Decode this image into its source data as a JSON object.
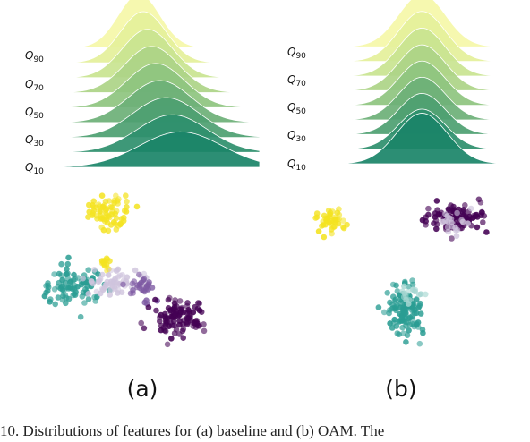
{
  "caption": "10.  Distributions of features for (a) baseline and (b) OAM. The",
  "chart_data": [
    {
      "type": "ridgeline",
      "panel": "(a)",
      "quantile_labels": [
        {
          "base": "Q",
          "sub": "90"
        },
        {
          "base": "Q",
          "sub": "70"
        },
        {
          "base": "Q",
          "sub": "50"
        },
        {
          "base": "Q",
          "sub": "30"
        },
        {
          "base": "Q",
          "sub": "10"
        }
      ],
      "colors": [
        "#f5f7a8",
        "#e4f09a",
        "#c9e490",
        "#acd487",
        "#8ec47f",
        "#6db077",
        "#4d9f71",
        "#2e8f6c",
        "#1a8468"
      ],
      "ridges": [
        {
          "peak": 0.42,
          "width": 0.1,
          "height": 1.0
        },
        {
          "peak": 0.44,
          "width": 0.11,
          "height": 0.95
        },
        {
          "peak": 0.46,
          "width": 0.12,
          "height": 0.9
        },
        {
          "peak": 0.48,
          "width": 0.13,
          "height": 0.86
        },
        {
          "peak": 0.5,
          "width": 0.14,
          "height": 0.82
        },
        {
          "peak": 0.52,
          "width": 0.15,
          "height": 0.78
        },
        {
          "peak": 0.55,
          "width": 0.16,
          "height": 0.74
        },
        {
          "peak": 0.58,
          "width": 0.17,
          "height": 0.7
        },
        {
          "peak": 0.62,
          "width": 0.2,
          "height": 0.66
        }
      ]
    },
    {
      "type": "ridgeline",
      "panel": "(b)",
      "quantile_labels": [
        {
          "base": "Q",
          "sub": "90"
        },
        {
          "base": "Q",
          "sub": "70"
        },
        {
          "base": "Q",
          "sub": "50"
        },
        {
          "base": "Q",
          "sub": "30"
        },
        {
          "base": "Q",
          "sub": "10"
        }
      ],
      "colors": [
        "#f5f7a8",
        "#e4f09a",
        "#c9e490",
        "#acd487",
        "#8ec47f",
        "#6db077",
        "#4d9f71",
        "#2e8f6c",
        "#1a8468"
      ],
      "ridges": [
        {
          "peak": 0.52,
          "width": 0.12,
          "height": 1.0
        },
        {
          "peak": 0.52,
          "width": 0.12,
          "height": 0.95
        },
        {
          "peak": 0.52,
          "width": 0.12,
          "height": 0.91
        },
        {
          "peak": 0.52,
          "width": 0.12,
          "height": 0.87
        },
        {
          "peak": 0.52,
          "width": 0.12,
          "height": 0.84
        },
        {
          "peak": 0.52,
          "width": 0.12,
          "height": 0.81
        },
        {
          "peak": 0.52,
          "width": 0.12,
          "height": 0.78
        },
        {
          "peak": 0.52,
          "width": 0.12,
          "height": 0.76
        },
        {
          "peak": 0.52,
          "width": 0.13,
          "height": 0.96
        }
      ]
    },
    {
      "type": "scatter",
      "panel": "(a)",
      "clusters": [
        {
          "color": "#f4e321",
          "center": [
            0.38,
            0.13
          ],
          "spread": [
            0.08,
            0.1
          ],
          "n": 70
        },
        {
          "color": "#f4e321",
          "center": [
            0.36,
            0.42
          ],
          "spread": [
            0.03,
            0.03
          ],
          "n": 12
        },
        {
          "color": "#2a9d93",
          "center": [
            0.2,
            0.58
          ],
          "spread": [
            0.13,
            0.12
          ],
          "n": 90
        },
        {
          "color": "#cfc4dd",
          "center": [
            0.4,
            0.55
          ],
          "spread": [
            0.1,
            0.06
          ],
          "n": 60
        },
        {
          "color": "#7e5aa3",
          "center": [
            0.55,
            0.58
          ],
          "spread": [
            0.06,
            0.06
          ],
          "n": 30
        },
        {
          "color": "#440154",
          "center": [
            0.72,
            0.75
          ],
          "spread": [
            0.1,
            0.08
          ],
          "n": 110
        }
      ]
    },
    {
      "type": "scatter",
      "panel": "(b)",
      "clusters": [
        {
          "color": "#f4e321",
          "center": [
            0.18,
            0.17
          ],
          "spread": [
            0.05,
            0.06
          ],
          "n": 45
        },
        {
          "color": "#440154",
          "center": [
            0.75,
            0.15
          ],
          "spread": [
            0.11,
            0.07
          ],
          "n": 110
        },
        {
          "color": "#cfc4dd",
          "center": [
            0.74,
            0.18
          ],
          "spread": [
            0.08,
            0.06
          ],
          "n": 20
        },
        {
          "color": "#2a9d93",
          "center": [
            0.52,
            0.72
          ],
          "spread": [
            0.07,
            0.12
          ],
          "n": 120
        },
        {
          "color": "#a7d7d2",
          "center": [
            0.55,
            0.62
          ],
          "spread": [
            0.05,
            0.05
          ],
          "n": 15
        }
      ]
    }
  ],
  "panel_labels": [
    "(a)",
    "(b)"
  ]
}
